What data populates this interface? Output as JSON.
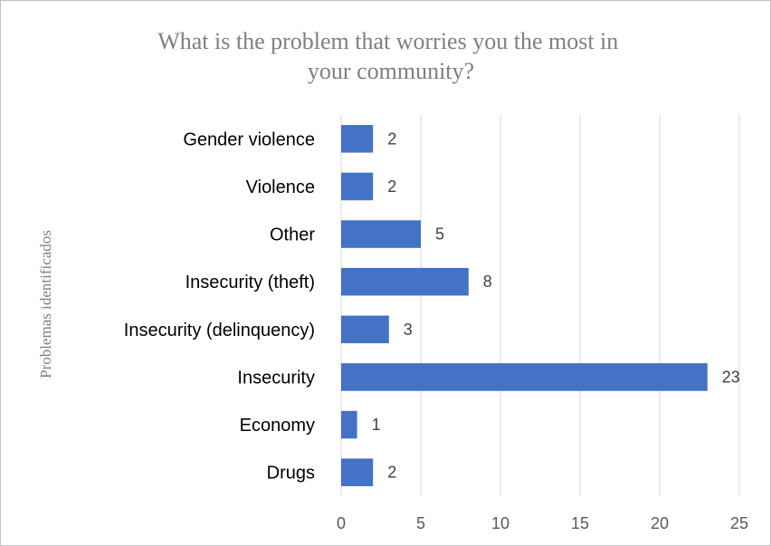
{
  "chart_data": {
    "type": "bar",
    "orientation": "horizontal",
    "title": "What is the problem that worries you the most in your community?",
    "xlabel": "",
    "ylabel": "Problemas identificados",
    "categories": [
      "Gender violence",
      "Violence",
      "Other",
      "Insecurity (theft)",
      "Insecurity (delinquency)",
      "Insecurity",
      "Economy",
      "Drugs"
    ],
    "values": [
      2,
      2,
      5,
      8,
      3,
      23,
      1,
      2
    ],
    "xlim": [
      0,
      25
    ],
    "xticks": [
      0,
      5,
      10,
      15,
      20,
      25
    ],
    "grid": true,
    "legend": "none",
    "bar_color": "#4472c4",
    "data_labels": true
  }
}
